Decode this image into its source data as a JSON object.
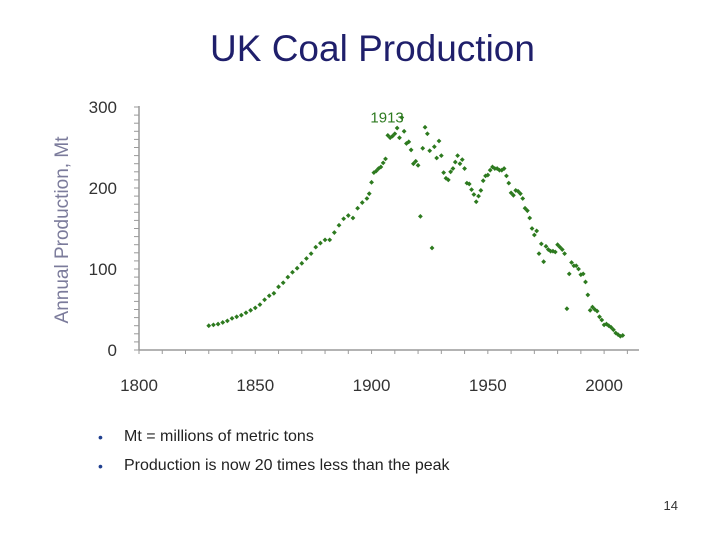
{
  "slide": {
    "title": "UK Coal Production",
    "bullets": [
      "Mt = millions of metric tons",
      "Production is now 20 times less than the peak"
    ],
    "page_number": "14"
  },
  "colors": {
    "title": "#1f1f6b",
    "points": "#2d7a1f",
    "axis": "#9a9a9a",
    "axis_title": "#7b7b9b"
  },
  "chart_data": {
    "type": "scatter",
    "title": "",
    "xlabel": "",
    "ylabel": "Annual Production, Mt",
    "xlim": [
      1800,
      2015
    ],
    "ylim": [
      0,
      300
    ],
    "x_ticks": [
      1800,
      1850,
      1900,
      1950,
      2000
    ],
    "y_ticks": [
      0,
      100,
      200,
      300
    ],
    "grid": false,
    "annotations": [
      {
        "text": "1913",
        "x": 1913,
        "y": 287
      }
    ],
    "series": [
      {
        "points": [
          [
            1830,
            30
          ],
          [
            1832,
            31
          ],
          [
            1834,
            32
          ],
          [
            1836,
            34
          ],
          [
            1838,
            36
          ],
          [
            1840,
            39
          ],
          [
            1842,
            41
          ],
          [
            1844,
            43
          ],
          [
            1846,
            46
          ],
          [
            1848,
            49
          ],
          [
            1850,
            52
          ],
          [
            1852,
            56
          ],
          [
            1854,
            62
          ],
          [
            1856,
            67
          ],
          [
            1858,
            70
          ],
          [
            1860,
            78
          ],
          [
            1862,
            83
          ],
          [
            1864,
            90
          ],
          [
            1866,
            96
          ],
          [
            1868,
            101
          ],
          [
            1870,
            107
          ],
          [
            1872,
            113
          ],
          [
            1874,
            119
          ],
          [
            1876,
            127
          ],
          [
            1878,
            132
          ],
          [
            1880,
            136
          ],
          [
            1882,
            136
          ],
          [
            1884,
            145
          ],
          [
            1886,
            154
          ],
          [
            1888,
            162
          ],
          [
            1890,
            166
          ],
          [
            1892,
            163
          ],
          [
            1894,
            175
          ],
          [
            1896,
            182
          ],
          [
            1898,
            187
          ],
          [
            1899,
            193
          ],
          [
            1900,
            207
          ],
          [
            1901,
            219
          ],
          [
            1902,
            221
          ],
          [
            1903,
            224
          ],
          [
            1904,
            226
          ],
          [
            1905,
            231
          ],
          [
            1906,
            236
          ],
          [
            1907,
            265
          ],
          [
            1908,
            262
          ],
          [
            1909,
            264
          ],
          [
            1910,
            267
          ],
          [
            1911,
            274
          ],
          [
            1912,
            262
          ],
          [
            1913,
            287
          ],
          [
            1914,
            270
          ],
          [
            1915,
            255
          ],
          [
            1916,
            257
          ],
          [
            1917,
            247
          ],
          [
            1918,
            230
          ],
          [
            1919,
            233
          ],
          [
            1920,
            228
          ],
          [
            1921,
            165
          ],
          [
            1922,
            249
          ],
          [
            1923,
            275
          ],
          [
            1924,
            267
          ],
          [
            1925,
            246
          ],
          [
            1926,
            126
          ],
          [
            1927,
            251
          ],
          [
            1928,
            237
          ],
          [
            1929,
            258
          ],
          [
            1930,
            240
          ],
          [
            1931,
            219
          ],
          [
            1932,
            212
          ],
          [
            1933,
            210
          ],
          [
            1934,
            220
          ],
          [
            1935,
            224
          ],
          [
            1936,
            232
          ],
          [
            1937,
            240
          ],
          [
            1938,
            230
          ],
          [
            1939,
            235
          ],
          [
            1940,
            224
          ],
          [
            1941,
            206
          ],
          [
            1942,
            205
          ],
          [
            1943,
            198
          ],
          [
            1944,
            192
          ],
          [
            1945,
            183
          ],
          [
            1946,
            190
          ],
          [
            1947,
            197
          ],
          [
            1948,
            209
          ],
          [
            1949,
            215
          ],
          [
            1950,
            216
          ],
          [
            1951,
            222
          ],
          [
            1952,
            226
          ],
          [
            1953,
            224
          ],
          [
            1954,
            224
          ],
          [
            1955,
            222
          ],
          [
            1956,
            222
          ],
          [
            1957,
            224
          ],
          [
            1958,
            215
          ],
          [
            1959,
            206
          ],
          [
            1960,
            194
          ],
          [
            1961,
            191
          ],
          [
            1962,
            197
          ],
          [
            1963,
            196
          ],
          [
            1964,
            193
          ],
          [
            1965,
            187
          ],
          [
            1966,
            175
          ],
          [
            1967,
            172
          ],
          [
            1968,
            163
          ],
          [
            1969,
            150
          ],
          [
            1970,
            142
          ],
          [
            1971,
            147
          ],
          [
            1972,
            119
          ],
          [
            1973,
            131
          ],
          [
            1974,
            109
          ],
          [
            1975,
            128
          ],
          [
            1976,
            124
          ],
          [
            1977,
            122
          ],
          [
            1978,
            122
          ],
          [
            1979,
            121
          ],
          [
            1980,
            130
          ],
          [
            1981,
            127
          ],
          [
            1982,
            124
          ],
          [
            1983,
            119
          ],
          [
            1984,
            51
          ],
          [
            1985,
            94
          ],
          [
            1986,
            108
          ],
          [
            1987,
            104
          ],
          [
            1988,
            104
          ],
          [
            1989,
            100
          ],
          [
            1990,
            93
          ],
          [
            1991,
            94
          ],
          [
            1992,
            84
          ],
          [
            1993,
            68
          ],
          [
            1994,
            49
          ],
          [
            1995,
            53
          ],
          [
            1996,
            50
          ],
          [
            1997,
            48
          ],
          [
            1998,
            41
          ],
          [
            1999,
            37
          ],
          [
            2000,
            31
          ],
          [
            2001,
            32
          ],
          [
            2002,
            30
          ],
          [
            2003,
            28
          ],
          [
            2004,
            25
          ],
          [
            2005,
            21
          ],
          [
            2006,
            19
          ],
          [
            2007,
            17
          ],
          [
            2008,
            18
          ]
        ]
      }
    ]
  }
}
